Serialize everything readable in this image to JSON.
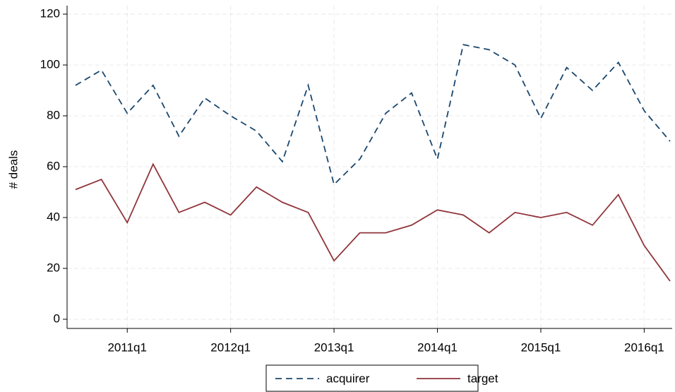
{
  "chart_data": {
    "type": "line",
    "ylabel": "# deals",
    "categories": [
      null,
      null,
      "2011q1",
      null,
      null,
      null,
      "2012q1",
      null,
      null,
      null,
      "2013q1",
      null,
      null,
      null,
      "2014q1",
      null,
      null,
      null,
      "2015q1",
      null,
      null,
      null,
      "2016q1",
      null
    ],
    "series": [
      {
        "name": "acquirer",
        "color": "#1a476f",
        "dash": true,
        "values": [
          92,
          98,
          81,
          92,
          72,
          87,
          80,
          74,
          62,
          92,
          53,
          63,
          81,
          89,
          63,
          108,
          106,
          100,
          79,
          99,
          90,
          101,
          82,
          70
        ]
      },
      {
        "name": "target",
        "color": "#90353b",
        "dash": false,
        "values": [
          51,
          55,
          38,
          61,
          42,
          46,
          41,
          52,
          46,
          42,
          23,
          34,
          34,
          37,
          43,
          41,
          34,
          42,
          40,
          42,
          37,
          49,
          29,
          15
        ]
      }
    ],
    "ylim": [
      0,
      120
    ],
    "yticks": [
      0,
      20,
      40,
      60,
      80,
      100,
      120
    ],
    "grid": true,
    "legend": "bottom"
  }
}
